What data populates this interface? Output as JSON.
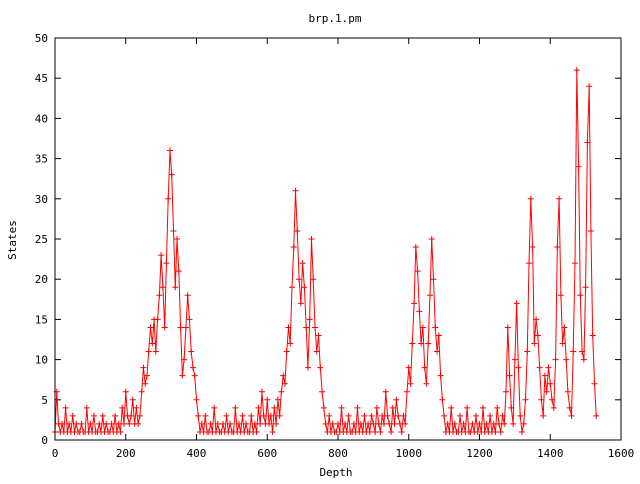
{
  "chart_data": {
    "type": "line",
    "title": "brp.1.pm",
    "xlabel": "Depth",
    "ylabel": "States",
    "xlim": [
      0,
      1600
    ],
    "ylim": [
      0,
      50
    ],
    "x_ticks": [
      "0",
      "200",
      "400",
      "600",
      "800",
      "1000",
      "1200",
      "1400",
      "1600"
    ],
    "y_ticks": [
      "0",
      "5",
      "10",
      "15",
      "20",
      "25",
      "30",
      "35",
      "40",
      "45",
      "50"
    ],
    "grid": false,
    "legend": "none",
    "point_marker": "plus",
    "series": [
      {
        "color": "#ff0000",
        "points": [
          [
            0,
            1
          ],
          [
            5,
            6
          ],
          [
            10,
            2
          ],
          [
            15,
            1
          ],
          [
            20,
            2
          ],
          [
            25,
            1
          ],
          [
            30,
            4
          ],
          [
            35,
            1
          ],
          [
            40,
            2
          ],
          [
            45,
            1
          ],
          [
            50,
            3
          ],
          [
            55,
            1
          ],
          [
            60,
            2
          ],
          [
            65,
            1
          ],
          [
            70,
            1
          ],
          [
            75,
            2
          ],
          [
            80,
            1
          ],
          [
            85,
            1
          ],
          [
            90,
            4
          ],
          [
            95,
            1
          ],
          [
            100,
            2
          ],
          [
            105,
            1
          ],
          [
            110,
            3
          ],
          [
            115,
            1
          ],
          [
            120,
            1
          ],
          [
            125,
            2
          ],
          [
            130,
            1
          ],
          [
            135,
            3
          ],
          [
            140,
            1
          ],
          [
            145,
            2
          ],
          [
            150,
            1
          ],
          [
            155,
            1
          ],
          [
            160,
            2
          ],
          [
            165,
            1
          ],
          [
            170,
            3
          ],
          [
            175,
            1
          ],
          [
            180,
            2
          ],
          [
            185,
            1
          ],
          [
            190,
            4
          ],
          [
            195,
            2
          ],
          [
            200,
            6
          ],
          [
            205,
            3
          ],
          [
            210,
            2
          ],
          [
            215,
            3
          ],
          [
            220,
            5
          ],
          [
            225,
            2
          ],
          [
            230,
            4
          ],
          [
            235,
            2
          ],
          [
            240,
            3
          ],
          [
            245,
            6
          ],
          [
            250,
            9
          ],
          [
            255,
            7
          ],
          [
            260,
            8
          ],
          [
            265,
            11
          ],
          [
            270,
            14
          ],
          [
            275,
            12
          ],
          [
            280,
            15
          ],
          [
            285,
            11
          ],
          [
            290,
            15
          ],
          [
            295,
            18
          ],
          [
            300,
            23
          ],
          [
            305,
            19
          ],
          [
            310,
            14
          ],
          [
            315,
            22
          ],
          [
            320,
            30
          ],
          [
            325,
            36
          ],
          [
            330,
            33
          ],
          [
            335,
            26
          ],
          [
            340,
            19
          ],
          [
            345,
            25
          ],
          [
            350,
            21
          ],
          [
            355,
            14
          ],
          [
            360,
            8
          ],
          [
            365,
            10
          ],
          [
            370,
            14
          ],
          [
            375,
            18
          ],
          [
            380,
            15
          ],
          [
            385,
            11
          ],
          [
            390,
            9
          ],
          [
            395,
            8
          ],
          [
            400,
            5
          ],
          [
            405,
            3
          ],
          [
            410,
            1
          ],
          [
            415,
            2
          ],
          [
            420,
            1
          ],
          [
            425,
            3
          ],
          [
            430,
            1
          ],
          [
            435,
            1
          ],
          [
            440,
            2
          ],
          [
            445,
            1
          ],
          [
            450,
            4
          ],
          [
            455,
            1
          ],
          [
            460,
            2
          ],
          [
            465,
            1
          ],
          [
            470,
            1
          ],
          [
            475,
            2
          ],
          [
            480,
            1
          ],
          [
            485,
            3
          ],
          [
            490,
            1
          ],
          [
            495,
            2
          ],
          [
            500,
            1
          ],
          [
            505,
            1
          ],
          [
            510,
            4
          ],
          [
            515,
            1
          ],
          [
            520,
            2
          ],
          [
            525,
            1
          ],
          [
            530,
            3
          ],
          [
            535,
            1
          ],
          [
            540,
            2
          ],
          [
            545,
            1
          ],
          [
            550,
            1
          ],
          [
            555,
            3
          ],
          [
            560,
            1
          ],
          [
            565,
            2
          ],
          [
            570,
            1
          ],
          [
            575,
            4
          ],
          [
            580,
            2
          ],
          [
            585,
            6
          ],
          [
            590,
            3
          ],
          [
            595,
            2
          ],
          [
            600,
            5
          ],
          [
            605,
            2
          ],
          [
            610,
            3
          ],
          [
            615,
            1
          ],
          [
            620,
            4
          ],
          [
            625,
            2
          ],
          [
            630,
            5
          ],
          [
            635,
            3
          ],
          [
            640,
            6
          ],
          [
            645,
            8
          ],
          [
            650,
            7
          ],
          [
            655,
            11
          ],
          [
            660,
            14
          ],
          [
            665,
            12
          ],
          [
            670,
            19
          ],
          [
            675,
            24
          ],
          [
            680,
            31
          ],
          [
            685,
            26
          ],
          [
            690,
            20
          ],
          [
            695,
            17
          ],
          [
            700,
            22
          ],
          [
            705,
            19
          ],
          [
            710,
            14
          ],
          [
            715,
            9
          ],
          [
            720,
            15
          ],
          [
            725,
            25
          ],
          [
            730,
            20
          ],
          [
            735,
            14
          ],
          [
            740,
            11
          ],
          [
            745,
            13
          ],
          [
            750,
            9
          ],
          [
            755,
            6
          ],
          [
            760,
            4
          ],
          [
            765,
            2
          ],
          [
            770,
            1
          ],
          [
            775,
            3
          ],
          [
            780,
            1
          ],
          [
            785,
            2
          ],
          [
            790,
            1
          ],
          [
            795,
            1
          ],
          [
            800,
            2
          ],
          [
            805,
            1
          ],
          [
            810,
            4
          ],
          [
            815,
            1
          ],
          [
            820,
            2
          ],
          [
            825,
            1
          ],
          [
            830,
            3
          ],
          [
            835,
            1
          ],
          [
            840,
            1
          ],
          [
            845,
            2
          ],
          [
            850,
            1
          ],
          [
            855,
            4
          ],
          [
            860,
            1
          ],
          [
            865,
            2
          ],
          [
            870,
            1
          ],
          [
            875,
            3
          ],
          [
            880,
            1
          ],
          [
            885,
            2
          ],
          [
            890,
            1
          ],
          [
            895,
            3
          ],
          [
            900,
            2
          ],
          [
            905,
            1
          ],
          [
            910,
            4
          ],
          [
            915,
            2
          ],
          [
            920,
            1
          ],
          [
            925,
            3
          ],
          [
            930,
            2
          ],
          [
            935,
            6
          ],
          [
            940,
            3
          ],
          [
            945,
            2
          ],
          [
            950,
            1
          ],
          [
            955,
            4
          ],
          [
            960,
            2
          ],
          [
            965,
            5
          ],
          [
            970,
            3
          ],
          [
            975,
            2
          ],
          [
            980,
            1
          ],
          [
            985,
            3
          ],
          [
            990,
            2
          ],
          [
            995,
            6
          ],
          [
            1000,
            9
          ],
          [
            1005,
            7
          ],
          [
            1010,
            12
          ],
          [
            1015,
            17
          ],
          [
            1020,
            24
          ],
          [
            1025,
            21
          ],
          [
            1030,
            16
          ],
          [
            1035,
            12
          ],
          [
            1040,
            14
          ],
          [
            1045,
            9
          ],
          [
            1050,
            7
          ],
          [
            1055,
            12
          ],
          [
            1060,
            18
          ],
          [
            1065,
            25
          ],
          [
            1070,
            20
          ],
          [
            1075,
            14
          ],
          [
            1080,
            11
          ],
          [
            1085,
            13
          ],
          [
            1090,
            8
          ],
          [
            1095,
            5
          ],
          [
            1100,
            3
          ],
          [
            1105,
            1
          ],
          [
            1110,
            2
          ],
          [
            1115,
            1
          ],
          [
            1120,
            4
          ],
          [
            1125,
            1
          ],
          [
            1130,
            2
          ],
          [
            1135,
            1
          ],
          [
            1140,
            1
          ],
          [
            1145,
            3
          ],
          [
            1150,
            1
          ],
          [
            1155,
            2
          ],
          [
            1160,
            1
          ],
          [
            1165,
            4
          ],
          [
            1170,
            1
          ],
          [
            1175,
            1
          ],
          [
            1180,
            2
          ],
          [
            1185,
            1
          ],
          [
            1190,
            3
          ],
          [
            1195,
            1
          ],
          [
            1200,
            2
          ],
          [
            1205,
            1
          ],
          [
            1210,
            4
          ],
          [
            1215,
            1
          ],
          [
            1220,
            2
          ],
          [
            1225,
            1
          ],
          [
            1230,
            3
          ],
          [
            1235,
            1
          ],
          [
            1240,
            2
          ],
          [
            1245,
            1
          ],
          [
            1250,
            4
          ],
          [
            1255,
            2
          ],
          [
            1260,
            1
          ],
          [
            1265,
            3
          ],
          [
            1270,
            2
          ],
          [
            1275,
            6
          ],
          [
            1280,
            14
          ],
          [
            1285,
            8
          ],
          [
            1290,
            4
          ],
          [
            1295,
            2
          ],
          [
            1300,
            10
          ],
          [
            1305,
            17
          ],
          [
            1310,
            9
          ],
          [
            1315,
            3
          ],
          [
            1320,
            1
          ],
          [
            1325,
            2
          ],
          [
            1330,
            5
          ],
          [
            1335,
            11
          ],
          [
            1340,
            22
          ],
          [
            1345,
            30
          ],
          [
            1350,
            24
          ],
          [
            1355,
            12
          ],
          [
            1360,
            15
          ],
          [
            1365,
            13
          ],
          [
            1370,
            9
          ],
          [
            1375,
            5
          ],
          [
            1380,
            3
          ],
          [
            1385,
            8
          ],
          [
            1390,
            6
          ],
          [
            1395,
            9
          ],
          [
            1400,
            7
          ],
          [
            1405,
            5
          ],
          [
            1410,
            4
          ],
          [
            1415,
            10
          ],
          [
            1420,
            24
          ],
          [
            1425,
            30
          ],
          [
            1430,
            18
          ],
          [
            1435,
            12
          ],
          [
            1440,
            14
          ],
          [
            1445,
            10
          ],
          [
            1450,
            6
          ],
          [
            1455,
            4
          ],
          [
            1460,
            3
          ],
          [
            1465,
            11
          ],
          [
            1470,
            22
          ],
          [
            1475,
            46
          ],
          [
            1480,
            34
          ],
          [
            1485,
            18
          ],
          [
            1490,
            11
          ],
          [
            1495,
            10
          ],
          [
            1500,
            19
          ],
          [
            1505,
            37
          ],
          [
            1510,
            44
          ],
          [
            1515,
            26
          ],
          [
            1520,
            13
          ],
          [
            1525,
            7
          ],
          [
            1530,
            3
          ]
        ]
      }
    ]
  }
}
